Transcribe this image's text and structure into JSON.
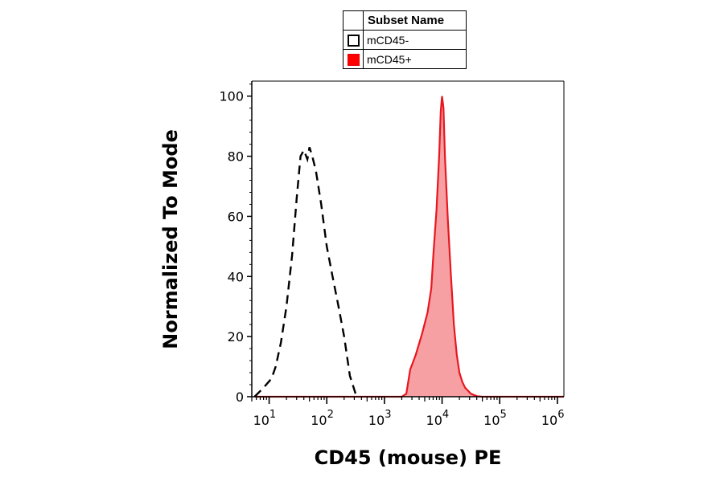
{
  "chart_data": {
    "type": "area",
    "xlabel": "CD45 (mouse) PE",
    "ylabel": "Normalized To Mode",
    "x_scale": "log",
    "xlim": [
      5,
      1300000
    ],
    "ylim": [
      0,
      105
    ],
    "y_ticks": [
      "0",
      "20",
      "40",
      "60",
      "80",
      "100"
    ],
    "x_ticks": [
      {
        "base": "10",
        "exp": "1"
      },
      {
        "base": "10",
        "exp": "2"
      },
      {
        "base": "10",
        "exp": "3"
      },
      {
        "base": "10",
        "exp": "4"
      },
      {
        "base": "10",
        "exp": "5"
      },
      {
        "base": "10",
        "exp": "6"
      }
    ],
    "legend": {
      "title": "Subset Name",
      "placement": "top-center",
      "entries": [
        "mCD45-",
        "mCD45+"
      ]
    },
    "series": [
      {
        "name": "mCD45-",
        "style": "dashed-outline",
        "color": "#000000",
        "x": [
          5.6,
          8,
          11,
          13,
          16,
          20,
          25,
          30,
          35,
          40,
          46,
          50,
          56,
          65,
          80,
          100,
          126,
          160,
          200,
          251,
          316,
          355
        ],
        "y": [
          0,
          3,
          6,
          10,
          18,
          30,
          47,
          66,
          80,
          82,
          79,
          83,
          80,
          75,
          64,
          50,
          40,
          30,
          20,
          7,
          1,
          0
        ]
      },
      {
        "name": "mCD45+",
        "style": "filled",
        "color": "#e8171f",
        "fill": "#f7a0a4",
        "x": [
          5.6,
          2000,
          2400,
          2800,
          3500,
          4500,
          5600,
          6500,
          7100,
          8000,
          8900,
          9500,
          10000,
          10600,
          11200,
          12600,
          14100,
          16000,
          18000,
          20000,
          22400,
          25100,
          28200,
          31600,
          35500,
          40000,
          50000,
          1300000
        ],
        "y": [
          0,
          0,
          1,
          9,
          14,
          21,
          28,
          36,
          48,
          62,
          80,
          95,
          100,
          96,
          80,
          59,
          42,
          24,
          14,
          8,
          5,
          3,
          2,
          1,
          0.6,
          0.2,
          0,
          0
        ]
      }
    ]
  }
}
